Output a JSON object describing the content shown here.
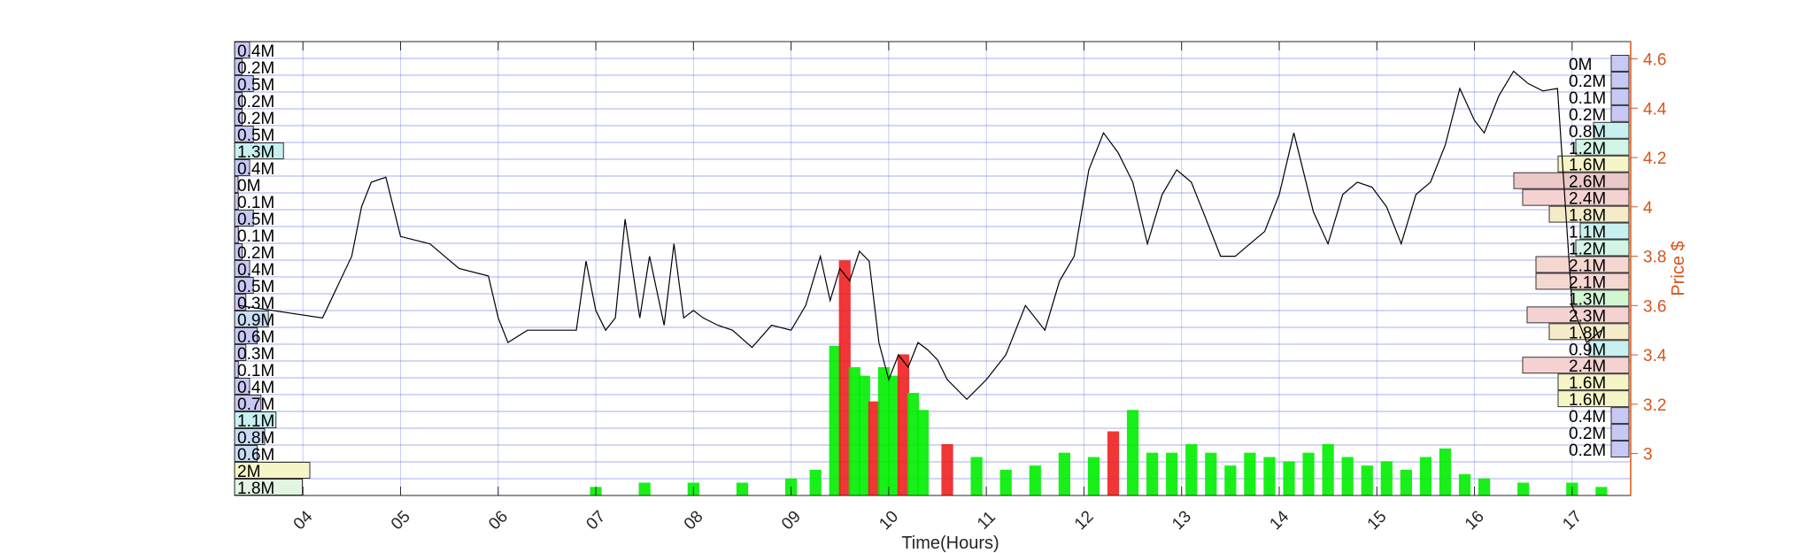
{
  "chart_data": {
    "type": "line",
    "xlabel": "Time(Hours)",
    "ylabel": "Price $",
    "x_ticks": [
      "04",
      "05",
      "06",
      "07",
      "08",
      "09",
      "10",
      "11",
      "12",
      "13",
      "14",
      "15",
      "16",
      "17"
    ],
    "y_ticks": [
      "3",
      "3.2",
      "3.4",
      "3.6",
      "3.8",
      "4",
      "4.2",
      "4.4",
      "4.6"
    ],
    "x_range": [
      3.3,
      17.6
    ],
    "y_range": [
      2.83,
      4.67
    ],
    "grid": true,
    "price_series": {
      "name": "",
      "x": [
        3.35,
        4.2,
        4.5,
        4.6,
        4.7,
        4.85,
        5.0,
        5.3,
        5.6,
        5.9,
        6.0,
        6.1,
        6.3,
        6.8,
        6.9,
        7.0,
        7.1,
        7.2,
        7.3,
        7.45,
        7.55,
        7.7,
        7.8,
        7.9,
        8.0,
        8.1,
        8.25,
        8.4,
        8.6,
        8.8,
        9.0,
        9.15,
        9.3,
        9.4,
        9.5,
        9.6,
        9.7,
        9.8,
        9.9,
        10.0,
        10.1,
        10.2,
        10.3,
        10.4,
        10.5,
        10.6,
        10.8,
        11.0,
        11.2,
        11.4,
        11.6,
        11.75,
        11.9,
        12.05,
        12.2,
        12.35,
        12.5,
        12.65,
        12.8,
        12.95,
        13.1,
        13.25,
        13.4,
        13.55,
        13.7,
        13.85,
        14.0,
        14.15,
        14.35,
        14.5,
        14.65,
        14.8,
        14.95,
        15.1,
        15.25,
        15.4,
        15.55,
        15.7,
        15.85,
        16.0,
        16.1,
        16.25,
        16.4,
        16.55,
        16.7,
        16.85,
        17.0,
        17.15,
        17.3
      ],
      "y": [
        3.6,
        3.55,
        3.8,
        4.0,
        4.1,
        4.12,
        3.88,
        3.85,
        3.75,
        3.72,
        3.55,
        3.45,
        3.5,
        3.5,
        3.78,
        3.58,
        3.5,
        3.55,
        3.95,
        3.55,
        3.8,
        3.52,
        3.85,
        3.55,
        3.58,
        3.55,
        3.52,
        3.5,
        3.43,
        3.52,
        3.5,
        3.6,
        3.8,
        3.62,
        3.75,
        3.7,
        3.82,
        3.78,
        3.45,
        3.3,
        3.4,
        3.35,
        3.45,
        3.42,
        3.38,
        3.3,
        3.22,
        3.3,
        3.4,
        3.6,
        3.5,
        3.7,
        3.8,
        4.15,
        4.3,
        4.22,
        4.1,
        3.85,
        4.05,
        4.15,
        4.1,
        3.95,
        3.8,
        3.8,
        3.85,
        3.9,
        4.05,
        4.3,
        3.98,
        3.85,
        4.05,
        4.1,
        4.08,
        4.0,
        3.85,
        4.05,
        4.1,
        4.25,
        4.48,
        4.35,
        4.3,
        4.45,
        4.55,
        4.5,
        4.47,
        4.48,
        3.6,
        3.45,
        3.5
      ]
    },
    "volume_series": {
      "name": "",
      "x": [
        7.0,
        7.5,
        8.0,
        8.5,
        9.0,
        9.25,
        9.45,
        9.55,
        9.65,
        9.75,
        9.85,
        9.95,
        10.05,
        10.15,
        10.25,
        10.35,
        10.6,
        10.9,
        11.2,
        11.5,
        11.8,
        12.1,
        12.3,
        12.5,
        12.7,
        12.9,
        13.1,
        13.3,
        13.5,
        13.7,
        13.9,
        14.1,
        14.3,
        14.5,
        14.7,
        14.9,
        15.1,
        15.3,
        15.5,
        15.7,
        15.9,
        16.1,
        16.5,
        17.0,
        17.3
      ],
      "y": [
        0.02,
        0.03,
        0.03,
        0.03,
        0.04,
        0.06,
        0.35,
        0.55,
        0.3,
        0.28,
        0.22,
        0.3,
        0.28,
        0.33,
        0.24,
        0.2,
        0.12,
        0.09,
        0.06,
        0.07,
        0.1,
        0.09,
        0.15,
        0.2,
        0.1,
        0.1,
        0.12,
        0.1,
        0.07,
        0.1,
        0.09,
        0.08,
        0.1,
        0.12,
        0.09,
        0.07,
        0.08,
        0.06,
        0.09,
        0.11,
        0.05,
        0.04,
        0.03,
        0.03,
        0.02
      ]
    },
    "left_volume_profile": [
      {
        "label": "0.4M",
        "value": 0.4,
        "color": "#c8c8f5"
      },
      {
        "label": "0.2M",
        "value": 0.2,
        "color": "#c8c8f5"
      },
      {
        "label": "0.5M",
        "value": 0.5,
        "color": "#c8c8f5"
      },
      {
        "label": "0.2M",
        "value": 0.2,
        "color": "#c8c8f5"
      },
      {
        "label": "0.2M",
        "value": 0.2,
        "color": "#c8c8f5"
      },
      {
        "label": "0.5M",
        "value": 0.5,
        "color": "#c8c8f5"
      },
      {
        "label": "1.3M",
        "value": 1.3,
        "color": "#c8f0f0"
      },
      {
        "label": "0.4M",
        "value": 0.4,
        "color": "#c8c8f5"
      },
      {
        "label": "0M",
        "value": 0.0,
        "color": "#c8c8f5"
      },
      {
        "label": "0.1M",
        "value": 0.1,
        "color": "#c8c8f5"
      },
      {
        "label": "0.5M",
        "value": 0.5,
        "color": "#c8c8f5"
      },
      {
        "label": "0.1M",
        "value": 0.1,
        "color": "#c8c8f5"
      },
      {
        "label": "0.2M",
        "value": 0.2,
        "color": "#c8c8f5"
      },
      {
        "label": "0.4M",
        "value": 0.4,
        "color": "#c8c8f5"
      },
      {
        "label": "0.5M",
        "value": 0.5,
        "color": "#c8c8f5"
      },
      {
        "label": "0.3M",
        "value": 0.3,
        "color": "#c8c8f5"
      },
      {
        "label": "0.9M",
        "value": 0.9,
        "color": "#c8dcf5"
      },
      {
        "label": "0.6M",
        "value": 0.6,
        "color": "#c8c8f5"
      },
      {
        "label": "0.3M",
        "value": 0.3,
        "color": "#c8c8f5"
      },
      {
        "label": "0.1M",
        "value": 0.1,
        "color": "#c8c8f5"
      },
      {
        "label": "0.4M",
        "value": 0.4,
        "color": "#c8c8f5"
      },
      {
        "label": "0.7M",
        "value": 0.7,
        "color": "#c8c8f5"
      },
      {
        "label": "1.1M",
        "value": 1.1,
        "color": "#c8f0f0"
      },
      {
        "label": "0.8M",
        "value": 0.8,
        "color": "#c8dcf5"
      },
      {
        "label": "0.6M",
        "value": 0.6,
        "color": "#c8dcf5"
      },
      {
        "label": "2M",
        "value": 2.0,
        "color": "#f5f5c8"
      },
      {
        "label": "1.8M",
        "value": 1.8,
        "color": "#e1f5e1"
      }
    ],
    "right_volume_profile": [
      {
        "label": "0M",
        "value": 0.0,
        "color": "#c8c8f5"
      },
      {
        "label": "0.2M",
        "value": 0.2,
        "color": "#c8c8f5"
      },
      {
        "label": "0.1M",
        "value": 0.1,
        "color": "#c8c8f5"
      },
      {
        "label": "0.2M",
        "value": 0.2,
        "color": "#c8c8f5"
      },
      {
        "label": "0.8M",
        "value": 0.8,
        "color": "#c8f0f0"
      },
      {
        "label": "1.2M",
        "value": 1.2,
        "color": "#d2f5e6"
      },
      {
        "label": "1.6M",
        "value": 1.6,
        "color": "#f5f5c8"
      },
      {
        "label": "2.6M",
        "value": 2.6,
        "color": "#ebc8c8"
      },
      {
        "label": "2.4M",
        "value": 2.4,
        "color": "#f5d2d2"
      },
      {
        "label": "1.8M",
        "value": 1.8,
        "color": "#f5ebc8"
      },
      {
        "label": "1.1M",
        "value": 1.1,
        "color": "#c8f0f0"
      },
      {
        "label": "1.2M",
        "value": 1.2,
        "color": "#d2f5e6"
      },
      {
        "label": "2.1M",
        "value": 2.1,
        "color": "#f5d7d2"
      },
      {
        "label": "2.1M",
        "value": 2.1,
        "color": "#f5d7d2"
      },
      {
        "label": "1.3M",
        "value": 1.3,
        "color": "#d2f5d2"
      },
      {
        "label": "2.3M",
        "value": 2.3,
        "color": "#f5d2d2"
      },
      {
        "label": "1.8M",
        "value": 1.8,
        "color": "#f5ebc8"
      },
      {
        "label": "0.9M",
        "value": 0.9,
        "color": "#c8f0f0"
      },
      {
        "label": "2.4M",
        "value": 2.4,
        "color": "#f5d2d2"
      },
      {
        "label": "1.6M",
        "value": 1.6,
        "color": "#f5f5c8"
      },
      {
        "label": "1.6M",
        "value": 1.6,
        "color": "#f5f5c8"
      },
      {
        "label": "0.4M",
        "value": 0.4,
        "color": "#c8c8f5"
      },
      {
        "label": "0.2M",
        "value": 0.2,
        "color": "#c8c8f5"
      },
      {
        "label": "0.2M",
        "value": 0.2,
        "color": "#c8c8f5"
      }
    ],
    "colors": {
      "axis_right": "#d95319",
      "grid": "#5a6ee6",
      "price_line": "#000000",
      "volume_green": "#00ee00",
      "volume_red": "#ee2020"
    }
  }
}
